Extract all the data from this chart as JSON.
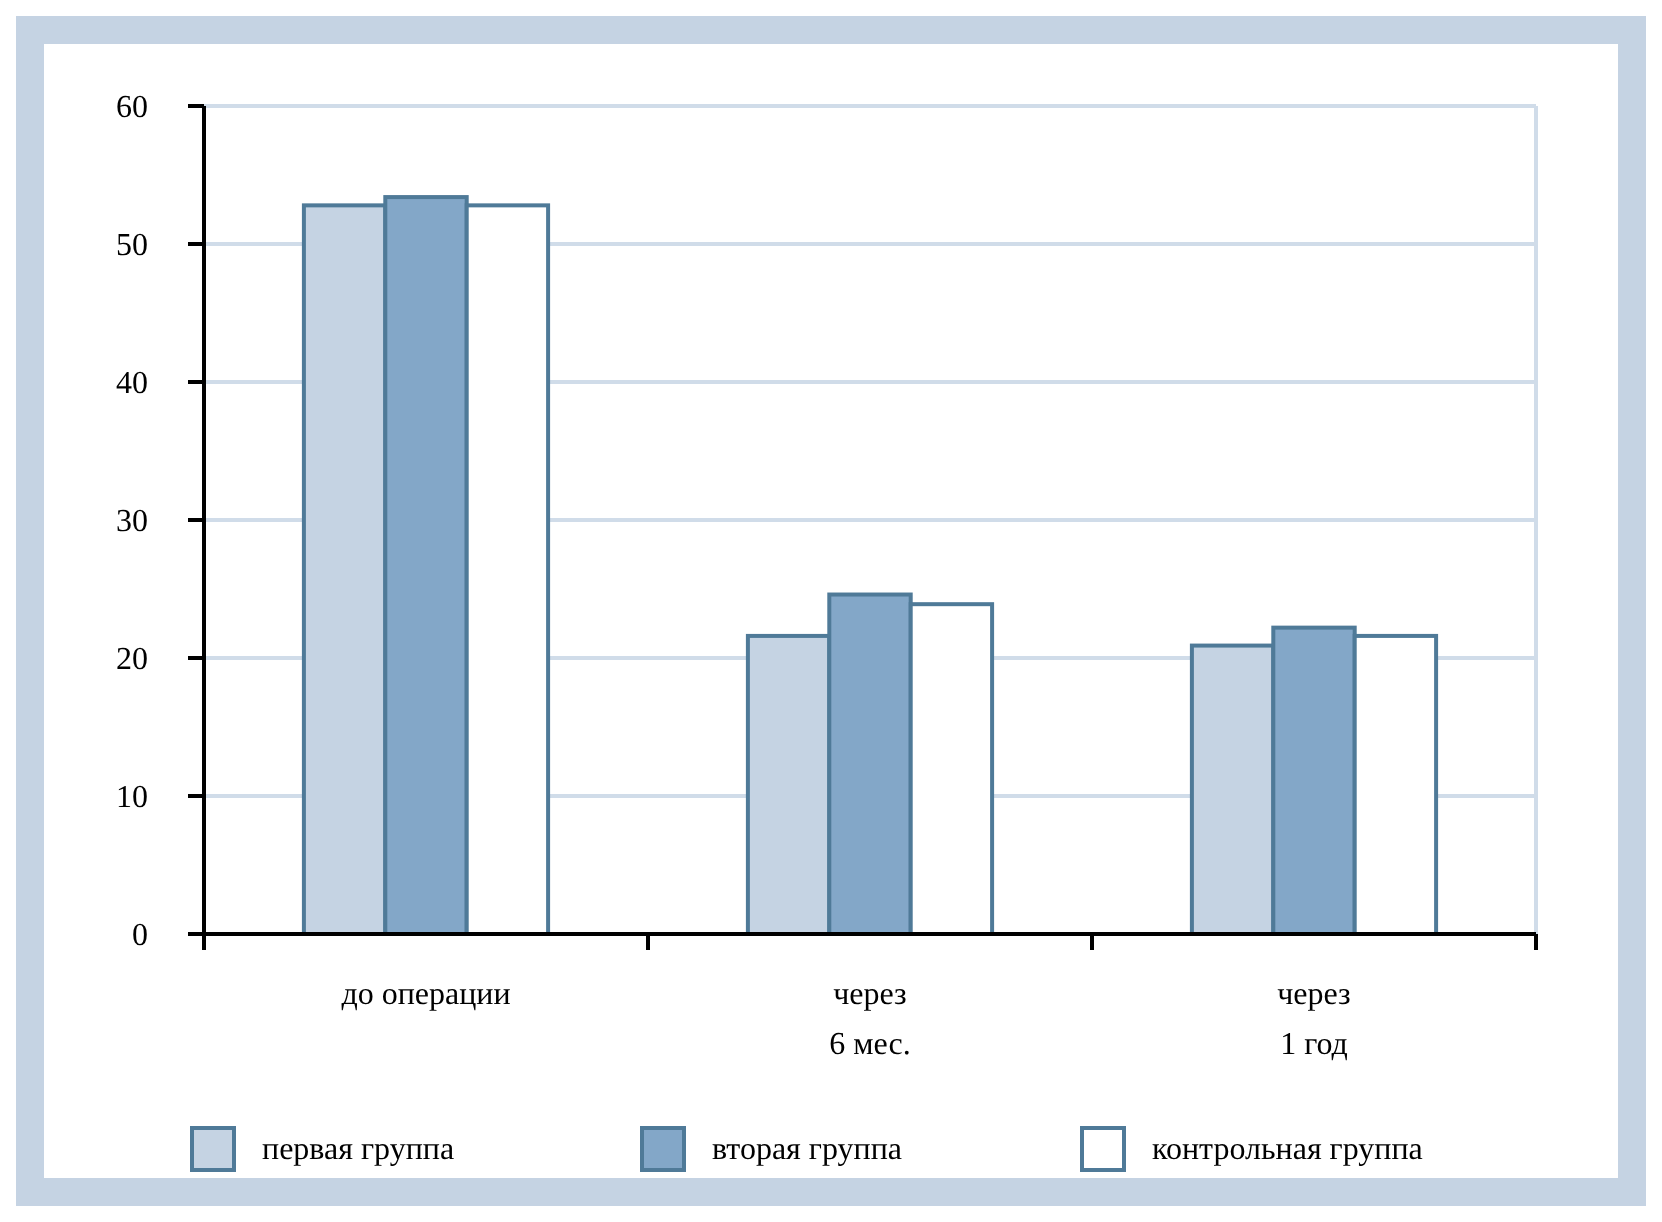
{
  "chart_data": {
    "type": "bar",
    "categories": [
      "до операции",
      "через\n6 мес.",
      "через\n1 год"
    ],
    "series": [
      {
        "name": "первая группа",
        "color": "#c5d3e3",
        "values": [
          52.8,
          21.6,
          20.9
        ]
      },
      {
        "name": "вторая группа",
        "color": "#83a7c8",
        "values": [
          53.4,
          24.6,
          22.2
        ]
      },
      {
        "name": "контрольная группа",
        "color": "#ffffff",
        "values": [
          52.8,
          23.9,
          21.6
        ]
      }
    ],
    "ylim": [
      0,
      60
    ],
    "yticks": [
      0,
      10,
      20,
      30,
      40,
      50,
      60
    ],
    "grid": "y",
    "legend": "bottom"
  }
}
